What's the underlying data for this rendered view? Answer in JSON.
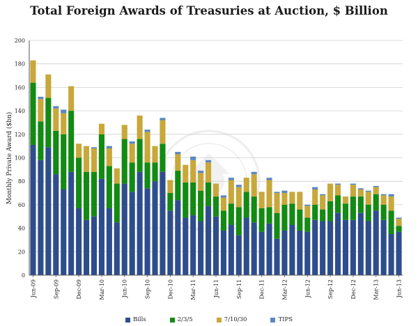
{
  "chart_data": {
    "type": "bar",
    "stacked": true,
    "title": "Total Foreign Awards of Treasuries at Auction, $ Billion",
    "ylabel": "Monthly Private Award ($bn)",
    "xlabel": "",
    "ylim": [
      0,
      200
    ],
    "yticks": [
      0,
      20,
      40,
      60,
      80,
      100,
      120,
      140,
      160,
      180,
      200
    ],
    "grid": "y",
    "legend_position": "bottom",
    "categories": [
      "Jun-09",
      "Jul-09",
      "Aug-09",
      "Sep-09",
      "Oct-09",
      "Nov-09",
      "Dec-09",
      "Jan-10",
      "Feb-10",
      "Mar-10",
      "Apr-10",
      "May-10",
      "Jun-10",
      "Jul-10",
      "Aug-10",
      "Sep-10",
      "Oct-10",
      "Nov-10",
      "Dec-10",
      "Jan-11",
      "Feb-11",
      "Mar-11",
      "Apr-11",
      "May-11",
      "Jun-11",
      "Jul-11",
      "Aug-11",
      "Sep-11",
      "Oct-11",
      "Nov-11",
      "Dec-11",
      "Jan-12",
      "Feb-12",
      "Mar-12",
      "Apr-12",
      "May-12",
      "Jun-12",
      "Jul-12",
      "Aug-12",
      "Sep-12",
      "Oct-12",
      "Nov-12",
      "Dec-12",
      "Jan-13",
      "Feb-13",
      "Mar-13",
      "Apr-13",
      "May-13",
      "Jun-13"
    ],
    "tick_labels": [
      "Jun-09",
      "Sep-09",
      "Dec-09",
      "Mar-10",
      "Jun-10",
      "Sep-10",
      "Dec-10",
      "Mar-11",
      "Jun-11",
      "Sep-11",
      "Dec-11",
      "Mar-12",
      "Jun-12",
      "Sep-12",
      "Dec-12",
      "Mar-13",
      "Jun-13"
    ],
    "series": [
      {
        "name": "Bills",
        "color": "#2e4d8c",
        "values": [
          111,
          98,
          109,
          86,
          73,
          88,
          57,
          47,
          50,
          82,
          57,
          45,
          78,
          71,
          88,
          74,
          80,
          88,
          55,
          64,
          49,
          51,
          46,
          59,
          50,
          38,
          43,
          34,
          49,
          45,
          37,
          44,
          31,
          38,
          43,
          38,
          37,
          47,
          46,
          46,
          53,
          47,
          47,
          53,
          46,
          55,
          47,
          35,
          37
        ]
      },
      {
        "name": "2/3/5",
        "color": "#138a13",
        "values": [
          53,
          33,
          42,
          37,
          47,
          52,
          43,
          41,
          38,
          38,
          36,
          33,
          38,
          25,
          28,
          22,
          16,
          24,
          15,
          25,
          30,
          28,
          26,
          20,
          17,
          17,
          18,
          24,
          22,
          22,
          20,
          14,
          22,
          22,
          18,
          18,
          12,
          13,
          10,
          17,
          15,
          14,
          20,
          14,
          14,
          14,
          13,
          20,
          5
        ]
      },
      {
        "name": "7/10/30",
        "color": "#c8a83a",
        "values": [
          19,
          19,
          20,
          19,
          18,
          21,
          12,
          22,
          20,
          9,
          15,
          13,
          12,
          16,
          20,
          26,
          14,
          20,
          11,
          14,
          15,
          19,
          15,
          17,
          11,
          11,
          20,
          17,
          12,
          19,
          14,
          23,
          17,
          10,
          10,
          15,
          10,
          13,
          12,
          15,
          9,
          6,
          10,
          6,
          11,
          6,
          8,
          12,
          6
        ]
      },
      {
        "name": "TIPS",
        "color": "#5b87c0",
        "values": [
          0,
          2,
          0,
          2,
          3,
          0,
          0,
          0,
          1,
          0,
          2,
          0,
          0,
          2,
          0,
          2,
          0,
          2,
          0,
          2,
          0,
          3,
          2,
          2,
          0,
          2,
          2,
          2,
          0,
          2,
          0,
          2,
          1,
          2,
          0,
          0,
          1,
          2,
          1,
          0,
          1,
          0,
          1,
          1,
          1,
          1,
          1,
          2,
          1
        ]
      }
    ]
  }
}
